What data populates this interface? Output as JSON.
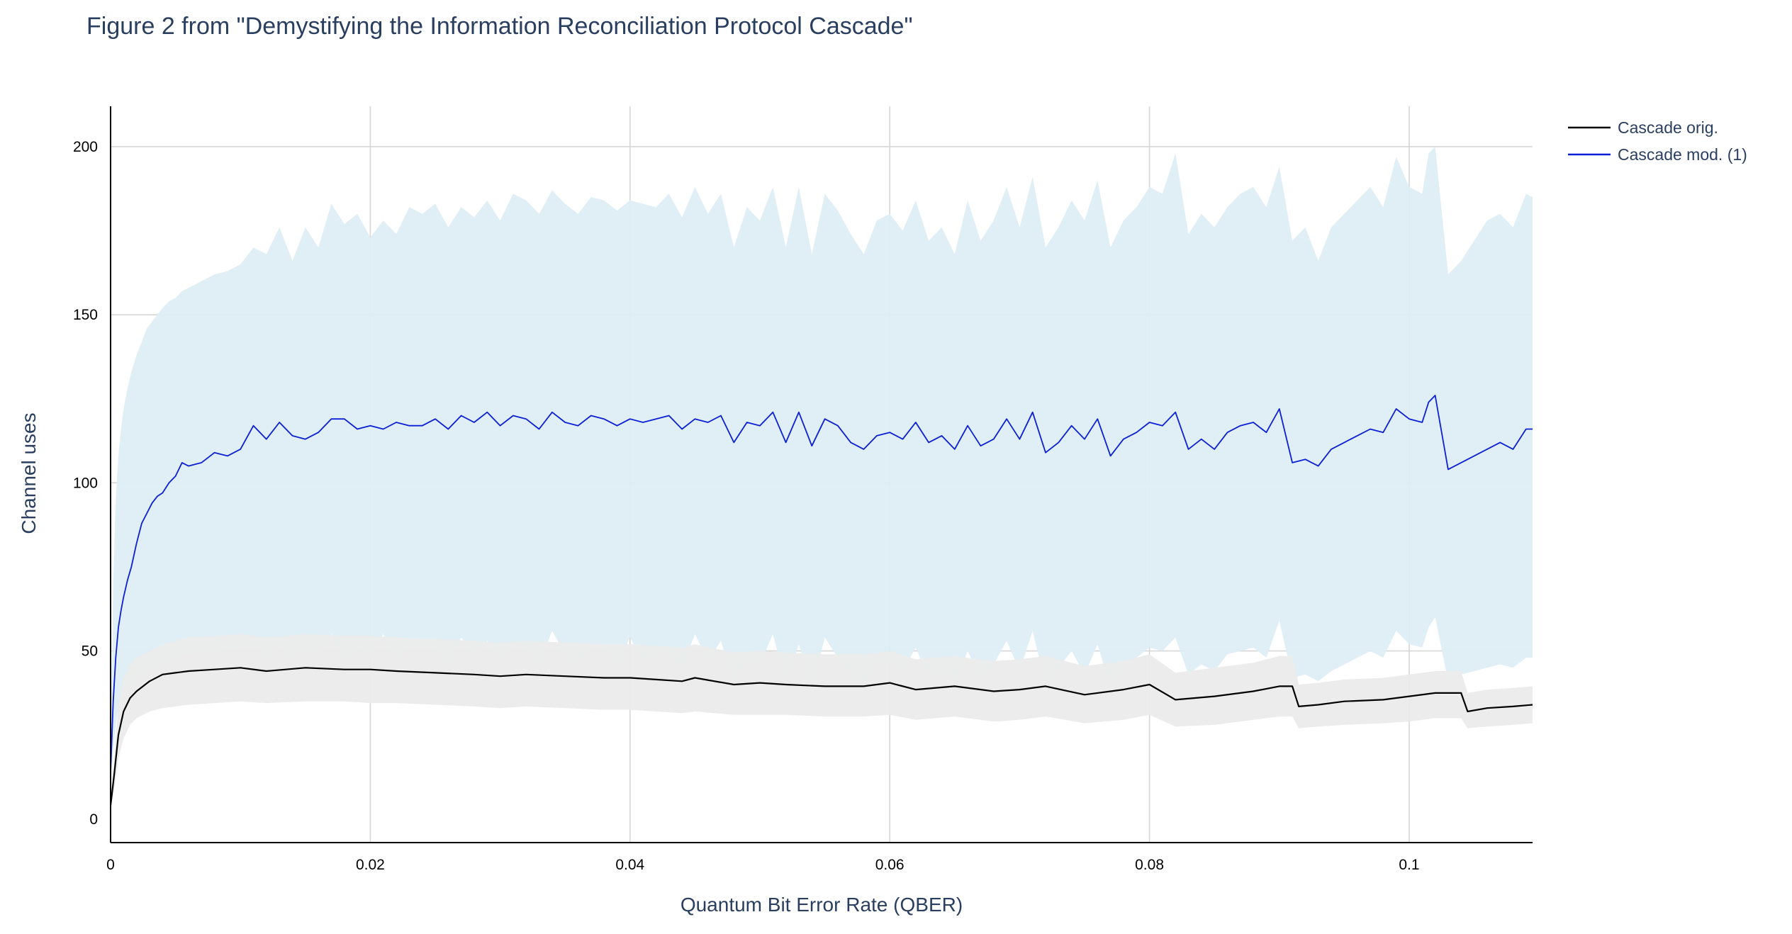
{
  "chart_data": {
    "type": "line",
    "title": "Figure 2 from \"Demystifying the Information Reconciliation Protocol Cascade\"",
    "xlabel": "Quantum Bit Error Rate (QBER)",
    "ylabel": "Channel uses",
    "xlim": [
      0,
      0.1095
    ],
    "ylim": [
      -7,
      212
    ],
    "x_ticks": [
      0,
      0.02,
      0.04,
      0.06,
      0.08,
      0.1
    ],
    "x_tick_labels": [
      "0",
      "0.02",
      "0.04",
      "0.06",
      "0.08",
      "0.1"
    ],
    "y_ticks": [
      0,
      50,
      100,
      150,
      200
    ],
    "y_tick_labels": [
      "0",
      "50",
      "100",
      "150",
      "200"
    ],
    "grid": true,
    "legend_position": "top-right",
    "series": [
      {
        "name": "Cascade orig.",
        "color": "#000000",
        "band_color": "#ebebeb",
        "x": [
          0,
          0.0003,
          0.0006,
          0.001,
          0.0015,
          0.002,
          0.003,
          0.004,
          0.005,
          0.006,
          0.008,
          0.01,
          0.012,
          0.015,
          0.018,
          0.02,
          0.022,
          0.025,
          0.028,
          0.03,
          0.032,
          0.035,
          0.038,
          0.04,
          0.042,
          0.044,
          0.045,
          0.048,
          0.05,
          0.052,
          0.055,
          0.058,
          0.06,
          0.062,
          0.065,
          0.068,
          0.07,
          0.072,
          0.075,
          0.078,
          0.08,
          0.082,
          0.085,
          0.088,
          0.09,
          0.091,
          0.0915,
          0.093,
          0.095,
          0.098,
          0.1,
          0.102,
          0.104,
          0.1045,
          0.106,
          0.108,
          0.1095
        ],
        "y": [
          4,
          14,
          25,
          32,
          36,
          38,
          41,
          43,
          43.5,
          44,
          44.5,
          45,
          44,
          45,
          44.5,
          44.5,
          44,
          43.5,
          43,
          42.5,
          43,
          42.5,
          42,
          42,
          41.5,
          41,
          42,
          40,
          40.5,
          40,
          39.5,
          39.5,
          40.5,
          38.5,
          39.5,
          38,
          38.5,
          39.5,
          37,
          38.5,
          40,
          35.5,
          36.5,
          38,
          39.5,
          39.5,
          33.5,
          34,
          35,
          35.5,
          36.5,
          37.5,
          37.5,
          32,
          33,
          33.5,
          34
        ],
        "lower": [
          4,
          9,
          18,
          24,
          28,
          30,
          32,
          33,
          33.5,
          34,
          34.5,
          35,
          34.5,
          35,
          35,
          34.5,
          34.5,
          34,
          33.5,
          33,
          33.5,
          33,
          32.5,
          32.5,
          32,
          31.5,
          32,
          31,
          31,
          31,
          30.5,
          30.5,
          31,
          29.5,
          30.5,
          29,
          29.5,
          30.5,
          28.5,
          29.5,
          31,
          27.5,
          28,
          29.5,
          30.5,
          30.5,
          27,
          27.5,
          28,
          28.5,
          29,
          30,
          30,
          27,
          27.5,
          28,
          28.5
        ],
        "upper": [
          4,
          20,
          34,
          42,
          46,
          48,
          50,
          52,
          53,
          54,
          54.5,
          55,
          54,
          55,
          54.5,
          54.5,
          54,
          53.5,
          53,
          52.5,
          53,
          52.5,
          52,
          52,
          51.5,
          51,
          52,
          49.5,
          50,
          49.5,
          49,
          49,
          50,
          47.5,
          48.5,
          47,
          47.5,
          48.5,
          45.5,
          47,
          49,
          43.5,
          45,
          46.5,
          48.5,
          48.5,
          40,
          40.5,
          41.5,
          42,
          43,
          44,
          44,
          37.5,
          38.5,
          39,
          39.5
        ]
      },
      {
        "name": "Cascade mod. (1)",
        "color": "#0b1fd6",
        "band_color": "#deedf5",
        "x": [
          0,
          0.0002,
          0.0004,
          0.0006,
          0.0008,
          0.001,
          0.0013,
          0.0016,
          0.002,
          0.0024,
          0.0028,
          0.0032,
          0.0036,
          0.004,
          0.0045,
          0.005,
          0.0055,
          0.006,
          0.007,
          0.008,
          0.009,
          0.01,
          0.011,
          0.012,
          0.013,
          0.014,
          0.015,
          0.016,
          0.017,
          0.018,
          0.019,
          0.02,
          0.021,
          0.022,
          0.023,
          0.024,
          0.025,
          0.026,
          0.027,
          0.028,
          0.029,
          0.03,
          0.031,
          0.032,
          0.033,
          0.034,
          0.035,
          0.036,
          0.037,
          0.038,
          0.039,
          0.04,
          0.041,
          0.042,
          0.043,
          0.044,
          0.045,
          0.046,
          0.047,
          0.048,
          0.049,
          0.05,
          0.051,
          0.052,
          0.053,
          0.054,
          0.055,
          0.056,
          0.057,
          0.058,
          0.059,
          0.06,
          0.061,
          0.062,
          0.063,
          0.064,
          0.065,
          0.066,
          0.067,
          0.068,
          0.069,
          0.07,
          0.071,
          0.072,
          0.073,
          0.074,
          0.075,
          0.076,
          0.077,
          0.078,
          0.079,
          0.08,
          0.081,
          0.082,
          0.083,
          0.084,
          0.085,
          0.086,
          0.087,
          0.088,
          0.089,
          0.09,
          0.091,
          0.092,
          0.093,
          0.094,
          0.095,
          0.096,
          0.097,
          0.098,
          0.099,
          0.1,
          0.101,
          0.1015,
          0.102,
          0.103,
          0.104,
          0.105,
          0.106,
          0.107,
          0.108,
          0.109,
          0.1095
        ],
        "y": [
          14,
          35,
          48,
          57,
          62,
          66,
          71,
          75,
          82,
          88,
          91,
          94,
          96,
          97,
          100,
          102,
          106,
          105,
          106,
          109,
          108,
          110,
          117,
          113,
          118,
          114,
          113,
          115,
          119,
          119,
          116,
          117,
          116,
          118,
          117,
          117,
          119,
          116,
          120,
          118,
          121,
          117,
          120,
          119,
          116,
          121,
          118,
          117,
          120,
          119,
          117,
          119,
          118,
          119,
          120,
          116,
          119,
          118,
          120,
          112,
          118,
          117,
          121,
          112,
          121,
          111,
          119,
          117,
          112,
          110,
          114,
          115,
          113,
          118,
          112,
          114,
          110,
          117,
          111,
          113,
          119,
          113,
          121,
          109,
          112,
          117,
          113,
          119,
          108,
          113,
          115,
          118,
          117,
          121,
          110,
          113,
          110,
          115,
          117,
          118,
          115,
          122,
          106,
          107,
          105,
          110,
          112,
          114,
          116,
          115,
          122,
          119,
          118,
          124,
          126,
          104,
          106,
          108,
          110,
          112,
          110,
          116,
          116
        ],
        "lower": [
          10,
          20,
          28,
          33,
          36,
          38,
          40,
          41,
          42,
          43,
          44,
          45,
          46,
          47,
          48,
          48,
          49,
          49,
          50,
          49,
          51,
          50,
          53,
          47,
          52,
          48,
          50,
          49,
          55,
          47,
          51,
          49,
          55,
          47,
          52,
          51,
          50,
          46,
          54,
          48,
          53,
          47,
          52,
          50,
          46,
          56,
          49,
          45,
          52,
          51,
          46,
          54,
          47,
          50,
          49,
          45,
          55,
          47,
          53,
          40,
          48,
          46,
          55,
          40,
          52,
          39,
          54,
          48,
          43,
          40,
          47,
          46,
          44,
          51,
          42,
          45,
          40,
          50,
          42,
          46,
          53,
          44,
          56,
          40,
          45,
          50,
          43,
          52,
          39,
          46,
          48,
          51,
          50,
          54,
          43,
          46,
          44,
          49,
          50,
          51,
          48,
          59,
          42,
          43,
          41,
          44,
          46,
          48,
          50,
          48,
          56,
          52,
          51,
          57,
          60,
          41,
          43,
          44,
          45,
          46,
          45,
          48,
          48
        ],
        "upper": [
          20,
          70,
          95,
          108,
          116,
          122,
          128,
          133,
          138,
          142,
          146,
          148,
          150,
          152,
          154,
          155,
          157,
          158,
          160,
          162,
          163,
          165,
          170,
          168,
          176,
          166,
          176,
          170,
          183,
          177,
          180,
          173,
          178,
          174,
          182,
          180,
          183,
          176,
          182,
          179,
          184,
          178,
          186,
          184,
          180,
          187,
          183,
          180,
          185,
          184,
          181,
          184,
          183,
          182,
          186,
          179,
          188,
          180,
          186,
          170,
          182,
          178,
          188,
          170,
          188,
          168,
          186,
          181,
          174,
          168,
          178,
          180,
          175,
          184,
          172,
          176,
          168,
          184,
          172,
          178,
          188,
          176,
          191,
          170,
          176,
          184,
          178,
          190,
          170,
          178,
          182,
          188,
          186,
          198,
          174,
          180,
          176,
          182,
          186,
          188,
          182,
          194,
          172,
          176,
          166,
          176,
          180,
          184,
          188,
          182,
          197,
          188,
          186,
          198,
          200,
          162,
          166,
          172,
          178,
          180,
          176,
          186,
          185
        ]
      }
    ]
  }
}
